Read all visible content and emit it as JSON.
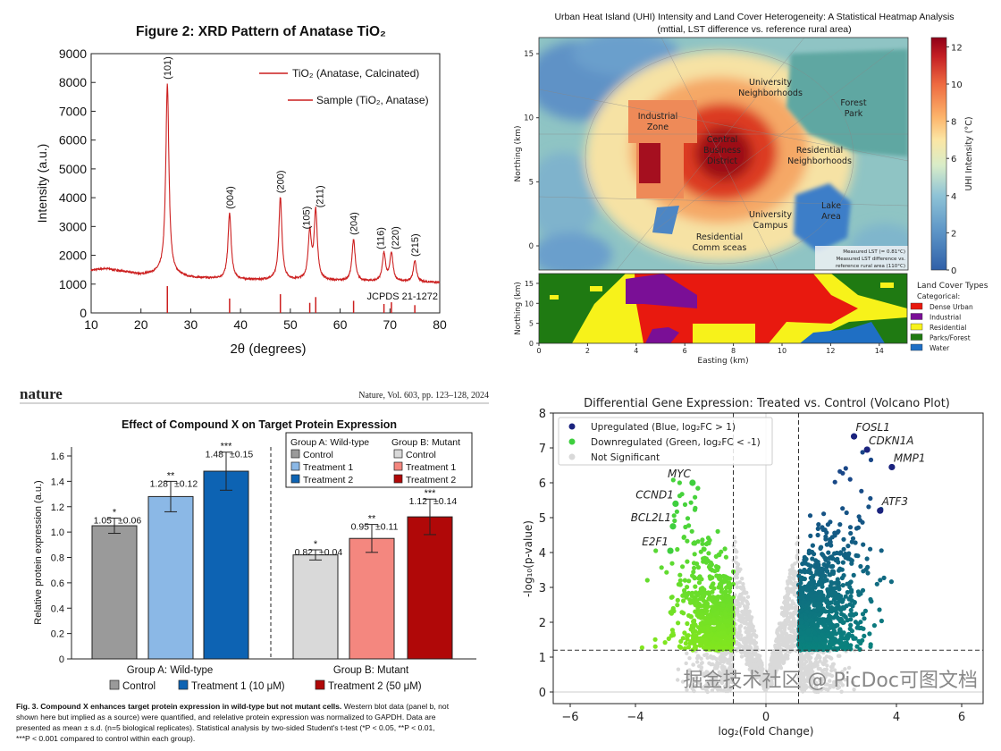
{
  "chart_data": [
    {
      "type": "line",
      "title": "Figure 2: XRD Pattern of Anatase TiO₂",
      "xlabel": "2θ (degrees)",
      "ylabel": "Intensity (a.u.)",
      "xlim": [
        10,
        80
      ],
      "ylim": [
        0,
        9000
      ],
      "xticks": [
        "10",
        "20",
        "30",
        "40",
        "50",
        "60",
        "70",
        "80"
      ],
      "yticks": [
        "0",
        "1000",
        "2000",
        "3000",
        "4000",
        "5000",
        "6000",
        "7000",
        "8000",
        "9000"
      ],
      "legend": [
        "TiO₂ (Anatase, Calcinated)",
        "Sample (TiO₂, Anatase)"
      ],
      "legend_position": "top-right",
      "reference_label": "JCPDS 21-1272",
      "color": "#cc1f1f",
      "baseline": [
        [
          10,
          1480
        ],
        [
          13,
          1540
        ],
        [
          16,
          1450
        ],
        [
          20,
          1330
        ],
        [
          24,
          1380
        ],
        [
          30,
          1220
        ],
        [
          40,
          1150
        ],
        [
          50,
          1130
        ],
        [
          60,
          1100
        ],
        [
          70,
          1080
        ],
        [
          80,
          1050
        ]
      ],
      "peaks": [
        {
          "hkl": "(101)",
          "two_theta": 25.3,
          "intensity": 7950,
          "ref_intensity": 930
        },
        {
          "hkl": "(004)",
          "two_theta": 37.8,
          "intensity": 3450,
          "ref_intensity": 500
        },
        {
          "hkl": "(200)",
          "two_theta": 48.0,
          "intensity": 4000,
          "ref_intensity": 650
        },
        {
          "hkl": "(105)",
          "two_theta": 53.9,
          "intensity": 2750,
          "ref_intensity": 350
        },
        {
          "hkl": "(211)",
          "two_theta": 55.1,
          "intensity": 3500,
          "ref_intensity": 550
        },
        {
          "hkl": "(204)",
          "two_theta": 62.7,
          "intensity": 2550,
          "ref_intensity": 420
        },
        {
          "hkl": "(116)",
          "two_theta": 68.8,
          "intensity": 2050,
          "ref_intensity": 310
        },
        {
          "hkl": "(220)",
          "two_theta": 70.3,
          "intensity": 2050,
          "ref_intensity": 370
        },
        {
          "hkl": "(215)",
          "two_theta": 75.0,
          "intensity": 1800,
          "ref_intensity": 270
        }
      ]
    },
    {
      "type": "heatmap",
      "title": "Urban Heat Island (UHI) Intensity and Land Cover Heterogeneity: A Statistical Heatmap Analysis",
      "subtitle": "(mttial, LST difference vs. reference rural area)",
      "ylabel": "Northing (km)",
      "xlabel": "Easting (km)",
      "xticks": [
        "0",
        "2",
        "4",
        "6",
        "8",
        "10",
        "12",
        "14"
      ],
      "yticks": [
        "0",
        "5",
        "10",
        "15"
      ],
      "landcover_yticks": [
        "0",
        "5",
        "10",
        "15"
      ],
      "colorbar": {
        "label": "UHI Intensity (°C)",
        "range": [
          0,
          12.5
        ],
        "ticks": [
          "0",
          "2",
          "4",
          "6",
          "8",
          "10",
          "12"
        ],
        "colormap": "RdYlBu_r"
      },
      "region_labels": [
        {
          "lines": [
            "Industrial",
            "Zone"
          ]
        },
        {
          "lines": [
            "University",
            "Neighborhoods"
          ]
        },
        {
          "lines": [
            "Forest",
            "Park"
          ]
        },
        {
          "lines": [
            "Central",
            "Business",
            "District"
          ]
        },
        {
          "lines": [
            "Residential",
            "Neighborhoods"
          ]
        },
        {
          "lines": [
            "University",
            "Campus"
          ]
        },
        {
          "lines": [
            "Lake",
            "Area"
          ]
        },
        {
          "lines": [
            "Residential",
            "Comm sceas"
          ]
        }
      ],
      "annotation": [
        "Measured LST (= 0.81°C)",
        "Measured LST difference vs.",
        "reference rural area (110°C)"
      ],
      "landcover_legend": {
        "title": "Land Cover Types",
        "subtitle": "Categorical:",
        "items": [
          {
            "label": "Dense Urban",
            "color": "#e8190f"
          },
          {
            "label": "Industrial",
            "color": "#7a0f96"
          },
          {
            "label": "Residential",
            "color": "#f7f21a"
          },
          {
            "label": "Parks/Forest",
            "color": "#1f7a12"
          },
          {
            "label": "Water",
            "color": "#1f6fc4"
          }
        ]
      }
    },
    {
      "type": "bar",
      "header": {
        "brand": "nature",
        "citation": "Nature, Vol. 603, pp. 123–128, 2024"
      },
      "title": "Effect of Compound X on Target Protein Expression",
      "ylabel": "Relative protein expression (a.u.)",
      "ylim": [
        0,
        1.6
      ],
      "yticks": [
        "0",
        "0.2",
        "0.4",
        "0.6",
        "0.8",
        "1.0",
        "1.2",
        "1.4",
        "1.6"
      ],
      "groups": [
        {
          "name": "Group A: Wild-type",
          "bars": [
            {
              "label": "Control",
              "value": 1.05,
              "sd_label": "±0.06",
              "sd": 0.06,
              "sig": "*",
              "color": "#9a9a9a"
            },
            {
              "label": "Treatment 1",
              "value": 1.28,
              "sd_label": "±0.12",
              "sd": 0.12,
              "sig": "**",
              "color": "#8bb8e6"
            },
            {
              "label": "Treatment 2",
              "value": 1.48,
              "sd_label": "±0.15",
              "sd": 0.15,
              "sig": "***",
              "color": "#0d63b3"
            }
          ]
        },
        {
          "name": "Group B: Mutant",
          "bars": [
            {
              "label": "Control",
              "value": 0.82,
              "sd_label": "±0.04",
              "sd": 0.04,
              "sig": "*",
              "color": "#d9d9d9"
            },
            {
              "label": "Treatment 1",
              "value": 0.95,
              "sd_label": "±0.11",
              "sd": 0.11,
              "sig": "**",
              "color": "#f4877f"
            },
            {
              "label": "Treatment 2",
              "value": 1.12,
              "sd_label": "±0.14",
              "sd": 0.14,
              "sig": "***",
              "color": "#b00808"
            }
          ]
        }
      ],
      "legend_position": "top-right",
      "bottom_legend": [
        {
          "label": "Control",
          "color": "#9a9a9a"
        },
        {
          "label": "Treatment 1 (10 μM)",
          "color": "#0d63b3"
        },
        {
          "label": "Treatment 2 (50 μM)",
          "color": "#b00808"
        }
      ],
      "caption": {
        "bold": "Fig. 3. Compound X enhances target protein expression in wild-type but not mutant cells.",
        "line1": "Western blot data (panel b, not",
        "line2": "shown here but implied as a source) were quantified, and relelative protein expression was normalized to GAPDH. Data are",
        "line3": "presented as mean ± s.d. (n=5 biological replicates). Statistical analysis by two-sided Student's t-test (*P < 0.05, **P < 0.01,",
        "line4": "***P < 0.001 compared to control within each group)."
      }
    },
    {
      "type": "scatter",
      "title": "Differential Gene Expression: Treated vs. Control (Volcano Plot)",
      "xlabel": "log₂(Fold Change)",
      "ylabel": "-log₁₀(p-value)",
      "xlim": [
        -6.5,
        6.5
      ],
      "ylim": [
        -0.3,
        8
      ],
      "xticks": [
        "−6",
        "−4",
        "0",
        "4",
        "6"
      ],
      "xtick_values": [
        -6,
        -4,
        0,
        4,
        6
      ],
      "yticks": [
        "0",
        "1",
        "2",
        "3",
        "4",
        "5",
        "6",
        "7",
        "8"
      ],
      "fc_thresholds": [
        -1,
        1
      ],
      "p_threshold": 1.2,
      "legend_position": "top-left",
      "legend": [
        {
          "label": "Upregulated (Blue, log₂FC > 1)",
          "color": "#1a237e"
        },
        {
          "label": "Downregulated (Green, log₂FC < -1)",
          "color": "#3ecf3e"
        },
        {
          "label": "Not Significant",
          "color": "#d9d9d9"
        }
      ],
      "labeled_genes": [
        {
          "gene": "FOSL1",
          "log2fc": 2.7,
          "neglog10p": 7.33,
          "direction": "up"
        },
        {
          "gene": "CDKN1A",
          "log2fc": 3.1,
          "neglog10p": 6.95,
          "direction": "up"
        },
        {
          "gene": "MMP1",
          "log2fc": 3.86,
          "neglog10p": 6.45,
          "direction": "up"
        },
        {
          "gene": "ATF3",
          "log2fc": 3.5,
          "neglog10p": 5.2,
          "direction": "up"
        },
        {
          "gene": "MYC",
          "log2fc": -2.25,
          "neglog10p": 6.0,
          "direction": "down"
        },
        {
          "gene": "CCND1",
          "log2fc": -2.77,
          "neglog10p": 5.4,
          "direction": "down"
        },
        {
          "gene": "BCL2L1",
          "log2fc": -2.85,
          "neglog10p": 4.75,
          "direction": "down"
        },
        {
          "gene": "E2F1",
          "log2fc": -2.93,
          "neglog10p": 4.05,
          "direction": "down"
        }
      ],
      "watermark": "掘金技术社区 @ PicDoc可图文档"
    }
  ]
}
